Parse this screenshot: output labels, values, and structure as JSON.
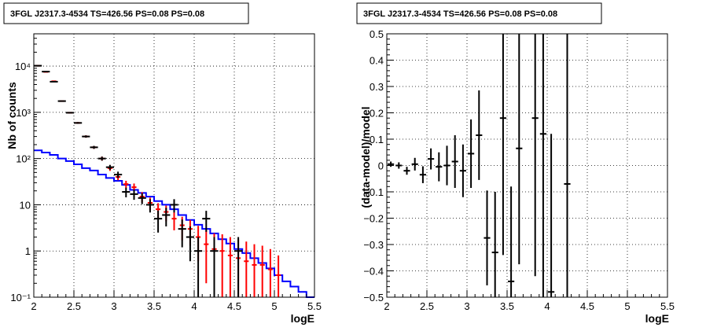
{
  "chart_data": [
    {
      "type": "line",
      "title": "3FGL J2317.3-4534 TS=426.56 PS=0.08 PS=0.08",
      "xlabel": "logE",
      "ylabel": "Nb of counts",
      "xlim": [
        2,
        5.5
      ],
      "ylim": [
        0.1,
        50000
      ],
      "ylog": true,
      "grid": true,
      "x_ticks": [
        2,
        2.5,
        3,
        3.5,
        4,
        4.5,
        5,
        5.5
      ],
      "x_tick_labels": [
        "2",
        "2.5",
        "3",
        "3.5",
        "4",
        "4.5",
        "5",
        "5.5"
      ],
      "y_ticks": [
        0.1,
        1,
        10,
        100,
        1000,
        10000
      ],
      "y_tick_labels": [
        "10⁻¹",
        "1",
        "10",
        "10²",
        "10³",
        "10⁴"
      ],
      "colors": {
        "data": "#000000",
        "model_total": "#ff0000",
        "model_source": "#0000ff"
      },
      "bin_edges": [
        2.0,
        2.1,
        2.2,
        2.3,
        2.4,
        2.5,
        2.6,
        2.7,
        2.8,
        2.9,
        3.0,
        3.1,
        3.2,
        3.3,
        3.4,
        3.5,
        3.6,
        3.7,
        3.8,
        3.9,
        4.0,
        4.1,
        4.2,
        4.3,
        4.4,
        4.5,
        4.6,
        4.7,
        4.8,
        4.9,
        5.0,
        5.1,
        5.2,
        5.3,
        5.4,
        5.5
      ],
      "series": [
        {
          "kind": "data",
          "x": [
            2.05,
            2.15,
            2.25,
            2.35,
            2.45,
            2.55,
            2.65,
            2.75,
            2.85,
            2.95,
            3.05,
            3.15,
            3.25,
            3.35,
            3.45,
            3.55,
            3.65,
            3.75,
            3.85,
            3.95,
            4.05,
            4.15,
            4.25,
            4.55
          ],
          "y": [
            10200,
            7600,
            4600,
            1750,
            980,
            590,
            300,
            175,
            100,
            65,
            45,
            19,
            17,
            14,
            10,
            5,
            6,
            10,
            3,
            2,
            1,
            5,
            1,
            1
          ],
          "yerr_low": [
            100,
            90,
            70,
            42,
            31,
            24,
            17,
            13,
            10,
            8,
            7,
            4.5,
            4.2,
            3.7,
            3.2,
            2.5,
            2.6,
            3.2,
            1.8,
            1.4,
            0.9,
            2.4,
            0.9,
            0.9
          ],
          "yerr_high": [
            100,
            90,
            70,
            42,
            31,
            24,
            17,
            13,
            10,
            8,
            7,
            4.5,
            4.2,
            3.7,
            3.2,
            2.5,
            2.6,
            3.2,
            1.8,
            1.4,
            1.0,
            2.4,
            1.0,
            1.0
          ]
        },
        {
          "kind": "model_total",
          "x": [
            2.05,
            2.15,
            2.25,
            2.35,
            2.45,
            2.55,
            2.65,
            2.75,
            2.85,
            2.95,
            3.05,
            3.15,
            3.25,
            3.35,
            3.45,
            3.55,
            3.65,
            3.75,
            3.85,
            3.95,
            4.05,
            4.15,
            4.25,
            4.35,
            4.45,
            4.55,
            4.65,
            4.75,
            4.85,
            4.95,
            5.05
          ],
          "y": [
            10200,
            7500,
            4700,
            1750,
            980,
            590,
            300,
            175,
            100,
            62,
            40,
            28,
            24,
            15,
            11,
            8,
            7,
            5,
            3.6,
            3,
            2,
            1.4,
            1.1,
            1,
            0.8,
            0.7,
            0.6,
            0.5,
            0.5,
            0.4,
            0.3
          ],
          "yerr_low": [
            100,
            90,
            70,
            42,
            31,
            24,
            17,
            13,
            10,
            8,
            6,
            5,
            4.8,
            3.8,
            3.3,
            2.8,
            2.6,
            2.2,
            1.9,
            1.7,
            1.4,
            1.2,
            1.05,
            0.9,
            0.7,
            0.6,
            0.5,
            0.4,
            0.4,
            0.3,
            0.2
          ],
          "yerr_high": [
            100,
            90,
            70,
            42,
            31,
            24,
            17,
            13,
            10,
            8,
            6,
            5,
            4.8,
            3.8,
            3.3,
            2.8,
            2.6,
            2.2,
            1.9,
            1.7,
            1.5,
            1.4,
            1.3,
            1.3,
            1.2,
            1.1,
            1.0,
            0.9,
            0.8,
            0.7,
            0.5
          ]
        },
        {
          "kind": "model_source",
          "values": [
            150,
            135,
            120,
            100,
            88,
            75,
            62,
            55,
            45,
            38,
            33,
            27,
            21,
            18,
            15,
            12,
            10,
            8,
            6,
            4.7,
            3.7,
            3.0,
            2.4,
            1.8,
            1.45,
            1.1,
            0.9,
            0.7,
            0.55,
            0.42,
            0.3,
            0.22,
            0.17,
            0.13,
            0.1
          ]
        }
      ]
    },
    {
      "type": "scatter",
      "title": "3FGL J2317.3-4534 TS=426.56 PS=0.08 PS=0.08",
      "xlabel": "logE",
      "ylabel": "(data-model)/model",
      "xlim": [
        2,
        5.5
      ],
      "ylim": [
        -0.5,
        0.5
      ],
      "grid": true,
      "x_ticks": [
        2,
        2.5,
        3,
        3.5,
        4,
        4.5,
        5,
        5.5
      ],
      "x_tick_labels": [
        "2",
        "2.5",
        "3",
        "3.5",
        "4",
        "4.5",
        "5",
        "5.5"
      ],
      "y_ticks": [
        -0.5,
        -0.4,
        -0.3,
        -0.2,
        -0.1,
        0,
        0.1,
        0.2,
        0.3,
        0.4,
        0.5
      ],
      "y_tick_labels": [
        "−0.5",
        "−0.4",
        "−0.3",
        "−0.2",
        "−0.1",
        "0",
        "0.1",
        "0.2",
        "0.3",
        "0.4",
        "0.5"
      ],
      "colors": {
        "data": "#000000"
      },
      "series": [
        {
          "x": [
            2.05,
            2.15,
            2.25,
            2.35,
            2.45,
            2.55,
            2.65,
            2.75,
            2.85,
            2.95,
            3.05,
            3.15,
            3.25,
            3.35,
            3.45,
            3.55,
            3.65,
            3.85,
            3.95,
            4.05,
            4.25
          ],
          "y": [
            0.005,
            0.0,
            -0.02,
            0.005,
            -0.035,
            0.025,
            -0.005,
            0.0,
            0.015,
            -0.02,
            0.045,
            0.115,
            -0.275,
            -0.33,
            0.18,
            -0.44,
            0.065,
            0.18,
            0.12,
            -0.48,
            -0.07
          ],
          "yerr": [
            0.01,
            0.012,
            0.015,
            0.024,
            0.032,
            0.04,
            0.055,
            0.075,
            0.1,
            0.1,
            0.13,
            0.17,
            0.18,
            0.23,
            0.52,
            0.36,
            0.44,
            0.6,
            0.7,
            0.6,
            1.0
          ]
        }
      ]
    }
  ]
}
